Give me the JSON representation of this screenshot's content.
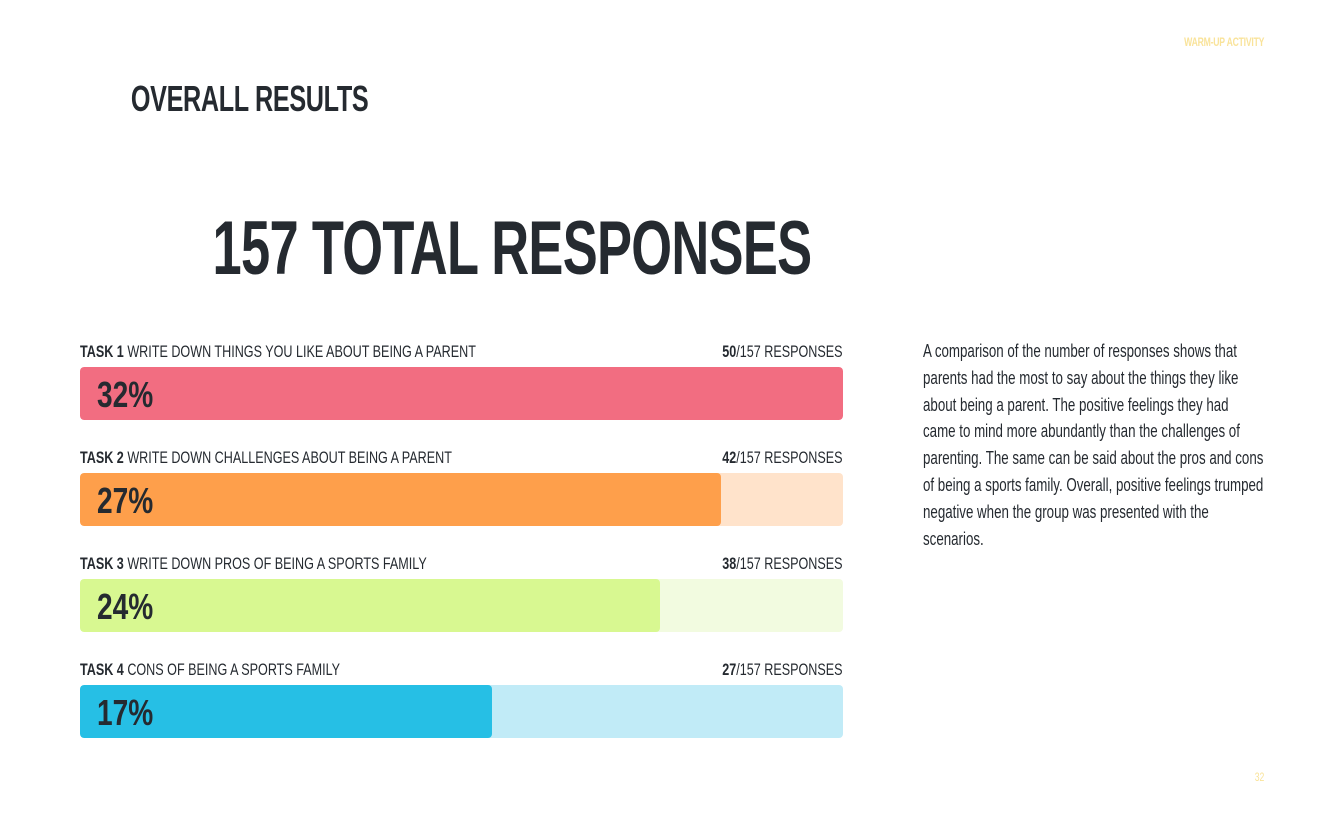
{
  "header": {
    "section_label": "WARM-UP ACTIVITY",
    "section_label_color": "#f9e39a",
    "title": "OVERALL RESULTS",
    "total_heading": "157 TOTAL RESPONSES"
  },
  "chart_data": {
    "type": "bar",
    "total": 157,
    "categories": [
      "TASK 1 WRITE DOWN THINGS YOU LIKE ABOUT BEING A PARENT",
      "TASK 2 WRITE DOWN CHALLENGES ABOUT BEING A PARENT",
      "TASK 3 WRITE DOWN PROS OF BEING A SPORTS FAMILY",
      "TASK 4 CONS OF BEING A SPORTS FAMILY"
    ],
    "values": [
      50,
      42,
      38,
      27
    ],
    "tasks": [
      {
        "num": "TASK 1",
        "label": "WRITE DOWN THINGS YOU LIKE ABOUT BEING A PARENT",
        "responses": "50",
        "of_total": "/157 RESPONSES",
        "percent_label": "32%",
        "fill_fraction": 1.0,
        "fill_color": "#f26d81",
        "track_color": "#fde0e5"
      },
      {
        "num": "TASK 2",
        "label": "WRITE DOWN CHALLENGES ABOUT BEING A PARENT",
        "responses": "42",
        "of_total": "/157 RESPONSES",
        "percent_label": "27%",
        "fill_fraction": 0.84,
        "fill_color": "#fe9f4b",
        "track_color": "#ffe3cb"
      },
      {
        "num": "TASK 3",
        "label": "WRITE DOWN PROS OF BEING A SPORTS FAMILY",
        "responses": "38",
        "of_total": "/157 RESPONSES",
        "percent_label": "24%",
        "fill_fraction": 0.76,
        "fill_color": "#d8f891",
        "track_color": "#f2fbe0"
      },
      {
        "num": "TASK 4",
        "label": "CONS OF BEING A SPORTS FAMILY",
        "responses": "27",
        "of_total": "/157 RESPONSES",
        "percent_label": "17%",
        "fill_fraction": 0.54,
        "fill_color": "#26bfe5",
        "track_color": "#c1ebf7"
      }
    ]
  },
  "summary": "A comparison of the number of responses shows that parents had the most to say about the things they like about being a parent. The positive feelings they had came to mind more abundantly than the challenges of parenting. The same can be said about the pros and cons of being a sports family. Overall, positive feelings trumped negative when the group was presented with the scenarios.",
  "footer": {
    "page_number": "32",
    "page_number_color": "#f9e39a"
  }
}
